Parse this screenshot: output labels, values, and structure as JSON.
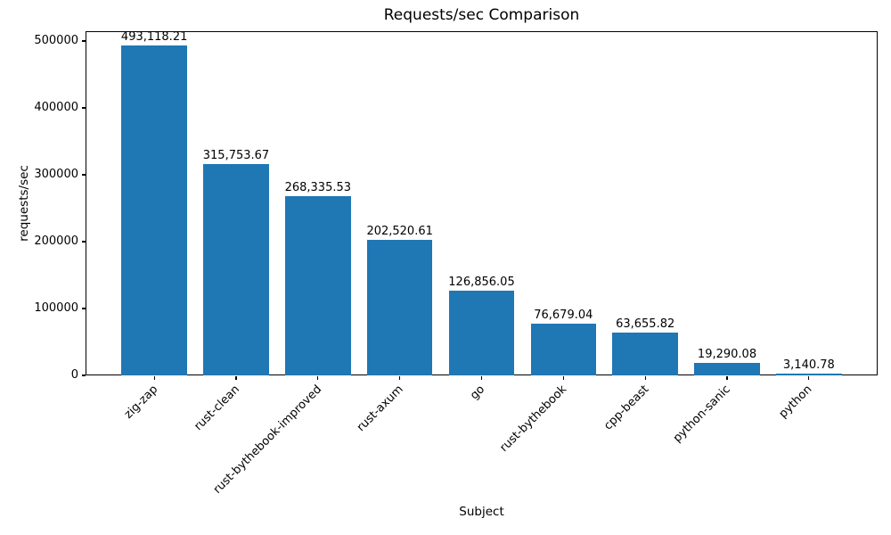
{
  "figure": {
    "background": "#ffffff",
    "text_color": "#000000"
  },
  "chart_data": {
    "type": "bar",
    "title": "Requests/sec Comparison",
    "xlabel": "Subject",
    "ylabel": "requests/sec",
    "categories": [
      "zig-zap",
      "rust-clean",
      "rust-bythebook-improved",
      "rust-axum",
      "go",
      "rust-bythebook",
      "cpp-beast",
      "python-sanic",
      "python"
    ],
    "values": [
      493118.21,
      315753.67,
      268335.53,
      202520.61,
      126856.05,
      76679.04,
      63655.82,
      19290.08,
      3140.78
    ],
    "value_labels": [
      "493,118.21",
      "315,753.67",
      "268,335.53",
      "202,520.61",
      "126,856.05",
      "76,679.04",
      "63,655.82",
      "19,290.08",
      "3,140.78"
    ],
    "yticks": [
      0,
      100000,
      200000,
      300000,
      400000,
      500000
    ],
    "ytick_labels": [
      "0",
      "100000",
      "200000",
      "300000",
      "400000",
      "500000"
    ],
    "ylim": [
      0,
      514667
    ],
    "bar_color": "#1f77b4",
    "grid": false,
    "xtick_rotation_deg": 45,
    "legend_position": "none"
  }
}
